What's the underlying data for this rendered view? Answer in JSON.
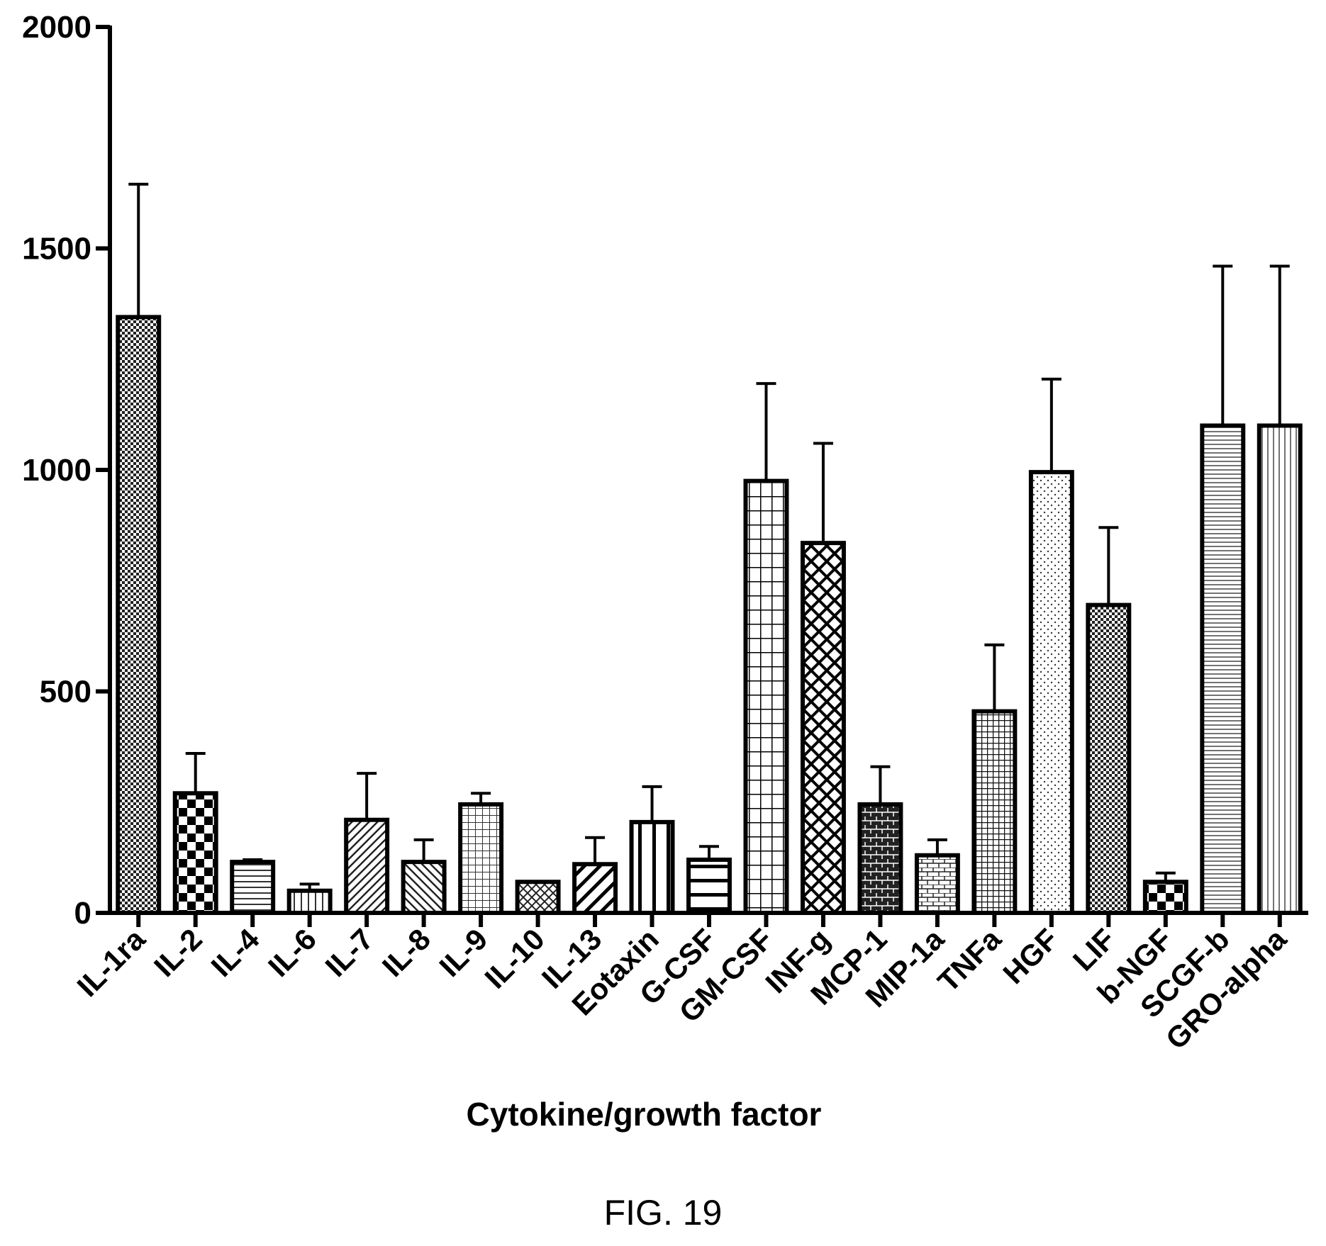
{
  "chart_data": {
    "type": "bar",
    "title": "",
    "xlabel": "Cytokine/growth factor",
    "ylabel": "",
    "ylim": [
      0,
      2000
    ],
    "yticks": [
      0,
      500,
      1000,
      1500,
      2000
    ],
    "grid": false,
    "categories": [
      "IL-1ra",
      "IL-2",
      "IL-4",
      "IL-6",
      "IL-7",
      "IL-8",
      "IL-9",
      "IL-10",
      "IL-13",
      "Eotaxin",
      "G-CSF",
      "GM-CSF",
      "INF-g",
      "MCP-1",
      "MIP-1a",
      "TNFa",
      "HGF",
      "LIF",
      "b-NGF",
      "SCGF-b",
      "GRO-alpha"
    ],
    "values": [
      1345,
      270,
      115,
      50,
      210,
      115,
      245,
      70,
      110,
      205,
      120,
      975,
      835,
      245,
      130,
      455,
      995,
      695,
      70,
      1100,
      1100
    ],
    "error_upper": [
      1645,
      360,
      120,
      65,
      315,
      165,
      270,
      70,
      170,
      285,
      150,
      1195,
      1060,
      330,
      165,
      605,
      1205,
      870,
      90,
      1460,
      1460
    ],
    "patterns": [
      "checker-dense",
      "checker-large",
      "hlines",
      "vlines",
      "diag-down",
      "diag-up",
      "grid-fine",
      "crosshatch-small",
      "diag-bold",
      "vbars-wide",
      "hbars-wide",
      "grid-large",
      "crosshatch",
      "bricks-dark",
      "bricks-light",
      "grid-dense",
      "dots",
      "checker-dense",
      "checker-large",
      "hlines-fine",
      "vlines-fine"
    ]
  },
  "figure_caption": "FIG. 19"
}
